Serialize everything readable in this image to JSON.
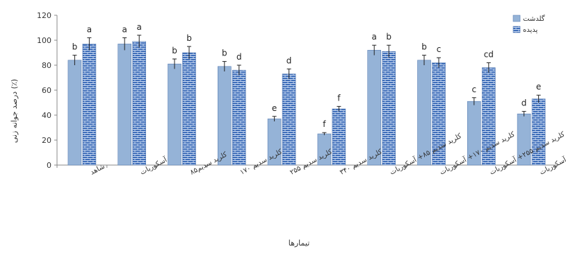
{
  "chart_data": {
    "type": "bar",
    "xlabel": "تیمارها",
    "ylabel": "درصد جوانه زنی (٪)",
    "ylim": [
      0,
      120
    ],
    "yticks": [
      0,
      20,
      40,
      60,
      80,
      100,
      120
    ],
    "grid": false,
    "legend_position": "top-right",
    "categories": [
      "شاهد",
      "آسکوربات",
      "کلرید سدیم۸۵",
      "کلرید سدیم ۱۷۰",
      "کلرید سدیم ۲۵۵",
      "کلرید سدیم ۳۴۰",
      "کلرید سدیم ۸۵+ آسکوربات",
      "کلرید سدیم ۱۷۰+ آسکوربات",
      "کلرید سدیم ۲۵۵+ آسکوربات",
      "کلرید سدیم ۳۴۰+ آسکوربات"
    ],
    "series": [
      {
        "name": "گلدشت",
        "color": "#95b3d7",
        "pattern": "solid",
        "values": [
          84,
          97,
          81,
          79,
          37,
          25,
          92,
          84,
          51,
          41
        ],
        "errors": [
          4,
          5,
          4,
          4,
          2,
          1,
          4,
          4,
          3,
          2
        ],
        "letters": [
          "b",
          "a",
          "b",
          "b",
          "e",
          "f",
          "a",
          "b",
          "c",
          "d"
        ]
      },
      {
        "name": "پدیده",
        "color": "#3e6db8",
        "pattern": "brick",
        "values": [
          97,
          99,
          90,
          76,
          73,
          45,
          91,
          82,
          78,
          53
        ],
        "errors": [
          5,
          5,
          5,
          4,
          4,
          2,
          5,
          4,
          4,
          3
        ],
        "letters": [
          "a",
          "a",
          "b",
          "d",
          "d",
          "f",
          "b",
          "c",
          "cd",
          "e"
        ]
      }
    ]
  }
}
